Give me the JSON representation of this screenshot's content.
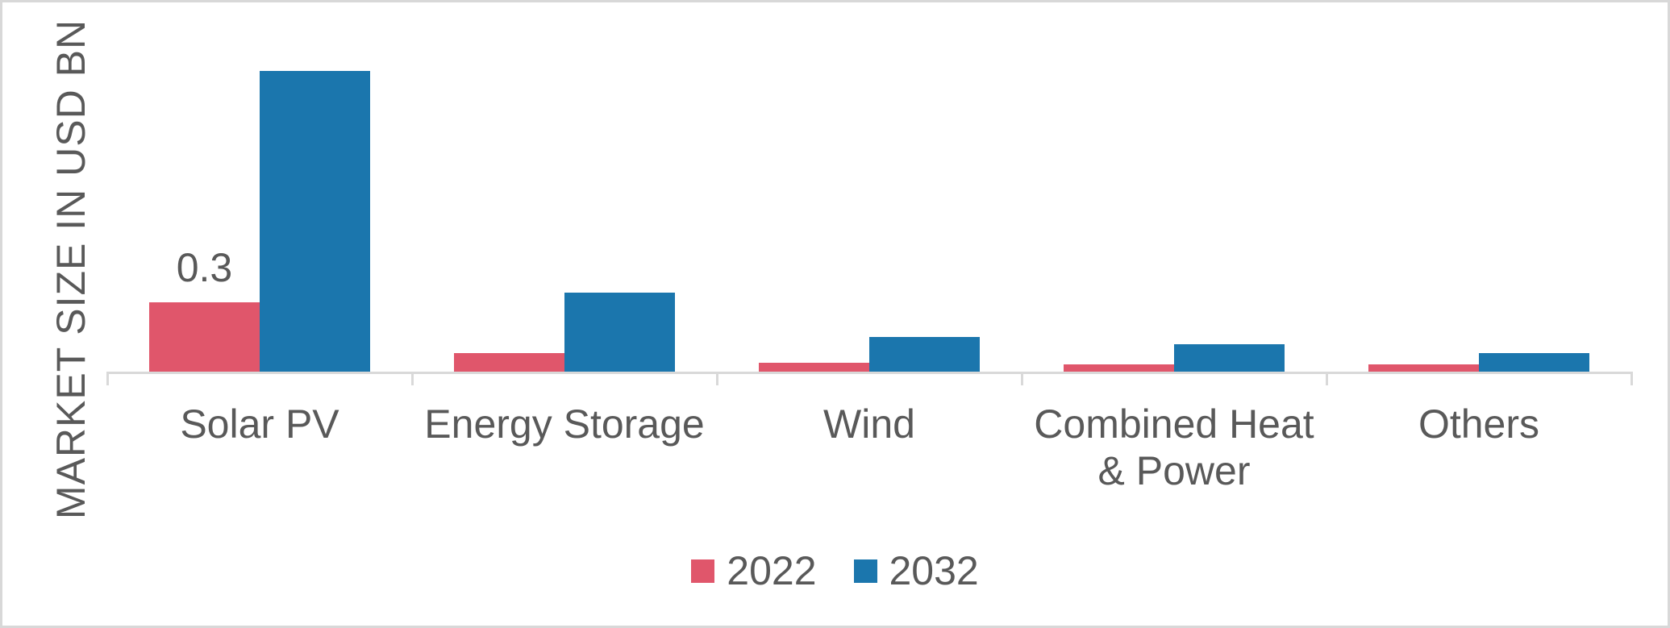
{
  "chart_data": {
    "type": "bar",
    "title": "",
    "xlabel": "",
    "ylabel": "MARKET SIZE IN USD BN",
    "ylim": [
      0,
      1.4
    ],
    "grid": false,
    "legend_position": "bottom-center",
    "categories": [
      "Solar PV",
      "Energy Storage",
      "Wind",
      "Combined Heat & Power",
      "Others"
    ],
    "category_label_lines": [
      [
        "Solar PV"
      ],
      [
        "Energy Storage"
      ],
      [
        "Wind"
      ],
      [
        "Combined Heat",
        "& Power"
      ],
      [
        "Others"
      ]
    ],
    "series": [
      {
        "name": "2022",
        "color": "#E0566B",
        "values": [
          0.3,
          0.08,
          0.04,
          0.03,
          0.03
        ]
      },
      {
        "name": "2032",
        "color": "#1B76AD",
        "values": [
          1.3,
          0.34,
          0.15,
          0.12,
          0.08
        ]
      }
    ],
    "data_labels": [
      {
        "series": "2022",
        "category": "Solar PV",
        "text": "0.3"
      }
    ]
  },
  "colors": {
    "background": "#FFFFFF",
    "frame_border": "#D8D8D8",
    "axis_line": "#D9D9D9",
    "text": "#595959",
    "series_2022": "#E0566B",
    "series_2032": "#1B76AD"
  }
}
